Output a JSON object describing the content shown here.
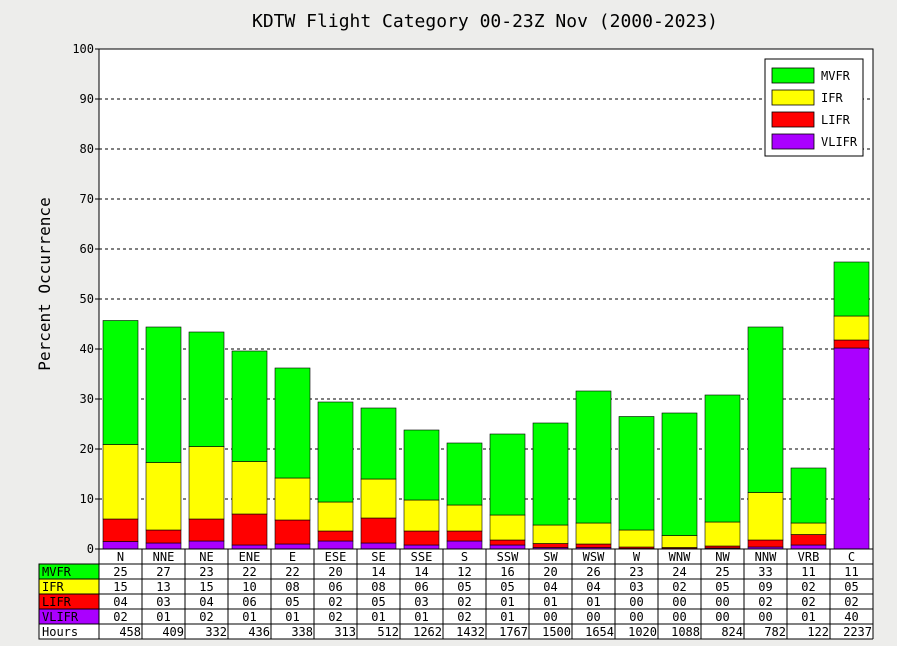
{
  "chart_data": {
    "type": "bar",
    "stacked": true,
    "title": "KDTW Flight Category 00-23Z Nov (2000-2023)",
    "ylabel": "Percent Occurrence",
    "ylim": [
      0,
      100
    ],
    "yticks": [
      0,
      10,
      20,
      30,
      40,
      50,
      60,
      70,
      80,
      90,
      100
    ],
    "grid": true,
    "legend_position": "top-right",
    "categories": [
      "N",
      "NNE",
      "NE",
      "ENE",
      "E",
      "ESE",
      "SE",
      "SSE",
      "S",
      "SSW",
      "SW",
      "WSW",
      "W",
      "WNW",
      "NW",
      "NNW",
      "VRB",
      "C"
    ],
    "series": [
      {
        "name": "MVFR",
        "color": "#00ff00",
        "values": [
          25,
          27,
          23,
          22,
          22,
          20,
          14,
          14,
          12,
          16,
          20,
          26,
          23,
          24,
          25,
          33,
          11,
          11
        ]
      },
      {
        "name": "IFR",
        "color": "#ffff00",
        "values": [
          15,
          13,
          15,
          10,
          8,
          6,
          8,
          6,
          5,
          5,
          4,
          4,
          3,
          2,
          5,
          9,
          2,
          5
        ]
      },
      {
        "name": "LIFR",
        "color": "#ff0000",
        "values": [
          4,
          3,
          4,
          6,
          5,
          2,
          5,
          3,
          2,
          1,
          1,
          1,
          0,
          0,
          0,
          2,
          2,
          2
        ]
      },
      {
        "name": "VLIFR",
        "color": "#aa00ff",
        "values": [
          2,
          1,
          2,
          1,
          1,
          2,
          1,
          1,
          2,
          1,
          0,
          0,
          0,
          0,
          0,
          0,
          1,
          40
        ]
      }
    ],
    "bar_totals": [
      45.7,
      44.4,
      43.4,
      39.6,
      36.2,
      29.4,
      28.2,
      23.8,
      21.2,
      23.0,
      25.2,
      31.6,
      26.5,
      27.2,
      30.8,
      44.4,
      16.2,
      57.4
    ],
    "bar_segments": [
      [
        1.5,
        6.0,
        20.9,
        45.7
      ],
      [
        1.2,
        3.8,
        17.3,
        44.4
      ],
      [
        1.6,
        6.0,
        20.5,
        43.4
      ],
      [
        0.8,
        7.0,
        17.5,
        39.6
      ],
      [
        1.0,
        5.8,
        14.2,
        36.2
      ],
      [
        1.6,
        3.6,
        9.4,
        29.4
      ],
      [
        1.2,
        6.2,
        14.0,
        28.2
      ],
      [
        0.8,
        3.6,
        9.8,
        23.8
      ],
      [
        1.6,
        3.6,
        8.8,
        21.2
      ],
      [
        0.8,
        1.8,
        6.8,
        23.0
      ],
      [
        0.3,
        1.1,
        4.8,
        25.2
      ],
      [
        0.3,
        1.0,
        5.2,
        31.6
      ],
      [
        0.1,
        0.4,
        3.8,
        26.5
      ],
      [
        0.1,
        0.3,
        2.7,
        27.2
      ],
      [
        0.2,
        0.6,
        5.4,
        30.8
      ],
      [
        0.4,
        1.8,
        11.3,
        44.4
      ],
      [
        0.8,
        2.9,
        5.2,
        16.2
      ],
      [
        40.2,
        41.8,
        46.6,
        57.4
      ]
    ],
    "table": {
      "rows": [
        {
          "label": "MVFR",
          "color": "#00ff00",
          "cells": [
            "25",
            "27",
            "23",
            "22",
            "22",
            "20",
            "14",
            "14",
            "12",
            "16",
            "20",
            "26",
            "23",
            "24",
            "25",
            "33",
            "11",
            "11"
          ]
        },
        {
          "label": "IFR",
          "color": "#ffff00",
          "cells": [
            "15",
            "13",
            "15",
            "10",
            "08",
            "06",
            "08",
            "06",
            "05",
            "05",
            "04",
            "04",
            "03",
            "02",
            "05",
            "09",
            "02",
            "05"
          ]
        },
        {
          "label": "LIFR",
          "color": "#ff0000",
          "cells": [
            "04",
            "03",
            "04",
            "06",
            "05",
            "02",
            "05",
            "03",
            "02",
            "01",
            "01",
            "01",
            "00",
            "00",
            "00",
            "02",
            "02",
            "02"
          ]
        },
        {
          "label": "VLIFR",
          "color": "#aa00ff",
          "cells": [
            "02",
            "01",
            "02",
            "01",
            "01",
            "02",
            "01",
            "01",
            "02",
            "01",
            "00",
            "00",
            "00",
            "00",
            "00",
            "00",
            "01",
            "40"
          ]
        },
        {
          "label": "Hours",
          "color": "#ffffff",
          "cells": [
            "458",
            "409",
            "332",
            "436",
            "338",
            "313",
            "512",
            "1262",
            "1432",
            "1767",
            "1500",
            "1654",
            "1020",
            "1088",
            "824",
            "782",
            "122",
            "2237"
          ]
        }
      ]
    }
  }
}
